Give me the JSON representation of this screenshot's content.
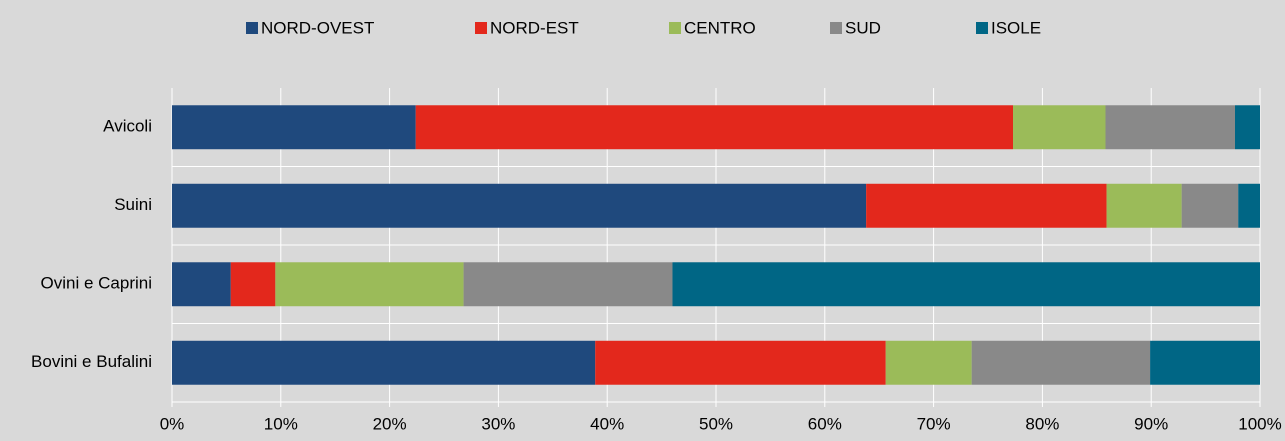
{
  "chart_data": {
    "type": "stacked_bar_horizontal",
    "categories": [
      "Avicoli",
      "Suini",
      "Ovini e Caprini",
      "Bovini e Bufalini"
    ],
    "series": [
      {
        "name": "NORD-OVEST",
        "color": "#1f497d",
        "values": [
          22.4,
          63.8,
          5.4,
          38.9
        ]
      },
      {
        "name": "NORD-EST",
        "color": "#e3281c",
        "values": [
          54.9,
          22.1,
          4.1,
          26.7
        ]
      },
      {
        "name": "CENTRO",
        "color": "#9bbb59",
        "values": [
          8.5,
          6.9,
          17.3,
          7.9
        ]
      },
      {
        "name": "SUD",
        "color": "#898989",
        "values": [
          11.9,
          5.2,
          19.2,
          16.4
        ]
      },
      {
        "name": "ISOLE",
        "color": "#006685",
        "values": [
          2.3,
          2.0,
          54.0,
          10.1
        ]
      }
    ],
    "xlim": [
      0,
      100
    ],
    "xticks": [
      {
        "value": 0,
        "label": "0%"
      },
      {
        "value": 10,
        "label": "10%"
      },
      {
        "value": 20,
        "label": "20%"
      },
      {
        "value": 30,
        "label": "30%"
      },
      {
        "value": 40,
        "label": "40%"
      },
      {
        "value": 50,
        "label": "50%"
      },
      {
        "value": 60,
        "label": "60%"
      },
      {
        "value": 70,
        "label": "70%"
      },
      {
        "value": 80,
        "label": "80%"
      },
      {
        "value": 90,
        "label": "90%"
      },
      {
        "value": 100,
        "label": "100%"
      }
    ],
    "grid": true,
    "legend": "top"
  }
}
